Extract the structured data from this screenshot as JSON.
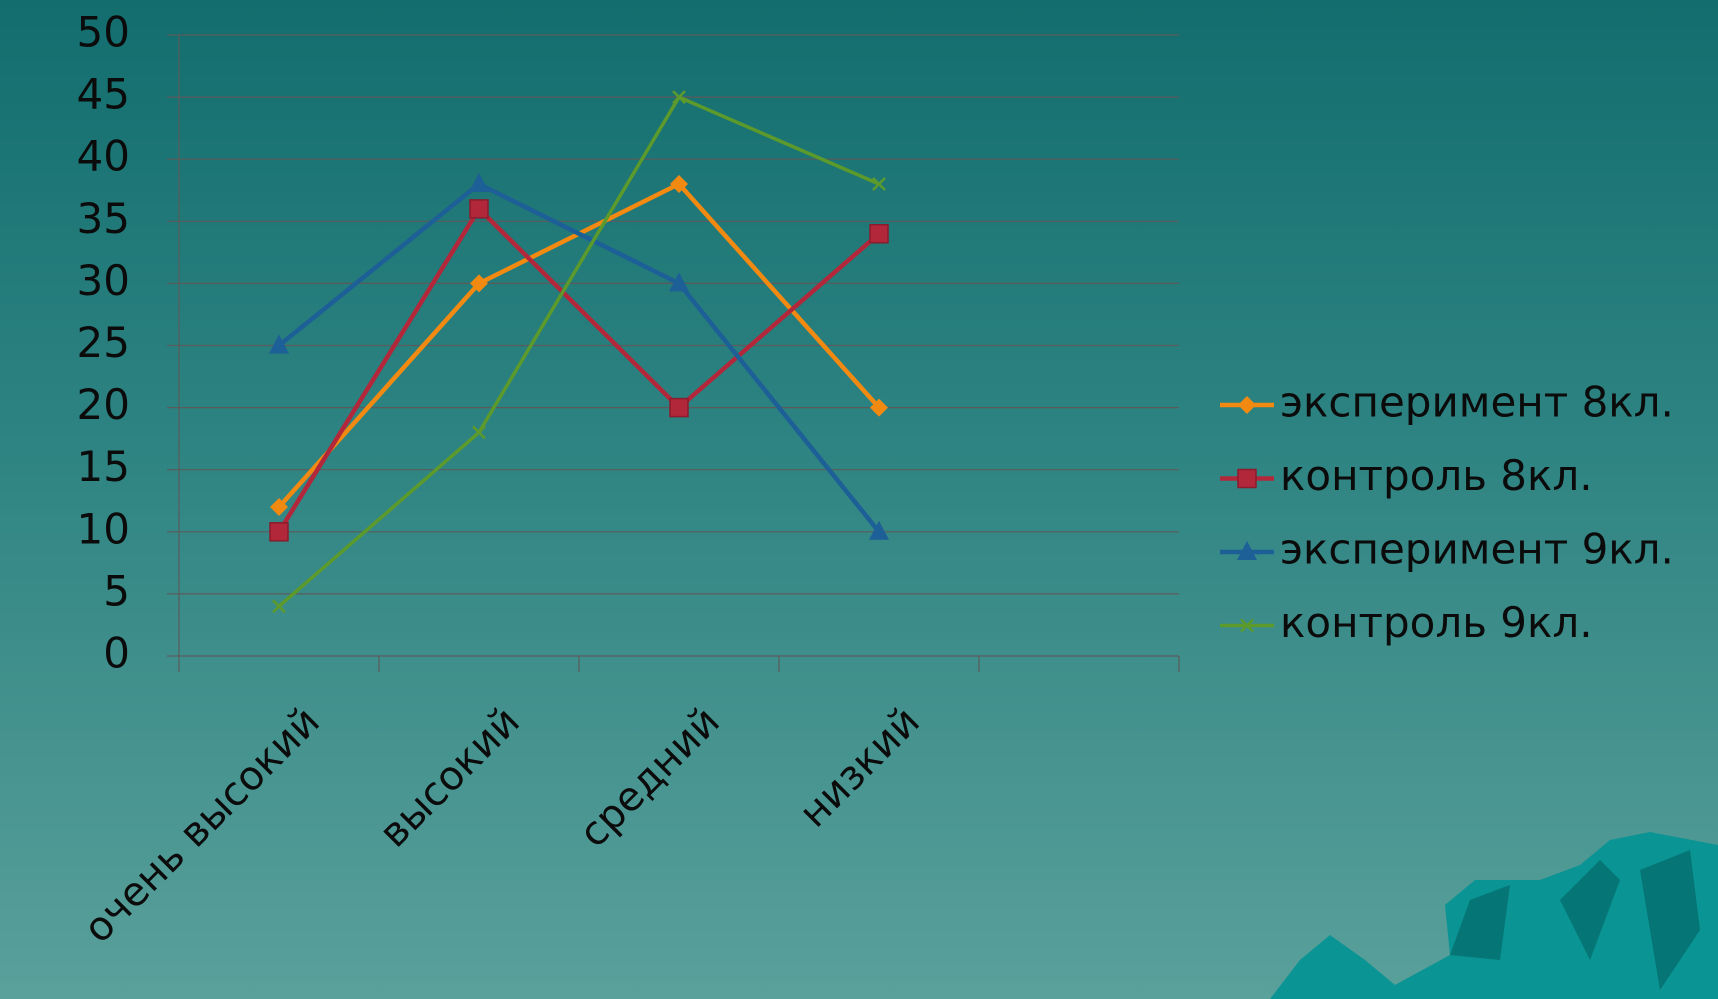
{
  "chart_data": {
    "type": "line",
    "categories": [
      "очень высокий",
      "высокий",
      "средний",
      "низкий",
      null
    ],
    "series": [
      {
        "name": "эксперимент 8кл.",
        "color": "#f28a12",
        "marker": "diamond",
        "values": [
          12,
          30,
          38,
          20,
          null
        ]
      },
      {
        "name": "контроль 8кл.",
        "color": "#b3273b",
        "marker": "square",
        "values": [
          10,
          36,
          20,
          34,
          null
        ]
      },
      {
        "name": "эксперимент 9кл.",
        "color": "#1d5f97",
        "marker": "triangle",
        "values": [
          25,
          38,
          30,
          10,
          null
        ]
      },
      {
        "name": "контроль 9кл.",
        "color": "#5c9a2c",
        "marker": "x",
        "values": [
          4,
          18,
          45,
          38,
          null
        ]
      }
    ],
    "ylim": [
      0,
      50
    ],
    "yticks": [
      0,
      5,
      10,
      15,
      20,
      25,
      30,
      35,
      40,
      45,
      50
    ],
    "grid": true,
    "legend": "right"
  }
}
